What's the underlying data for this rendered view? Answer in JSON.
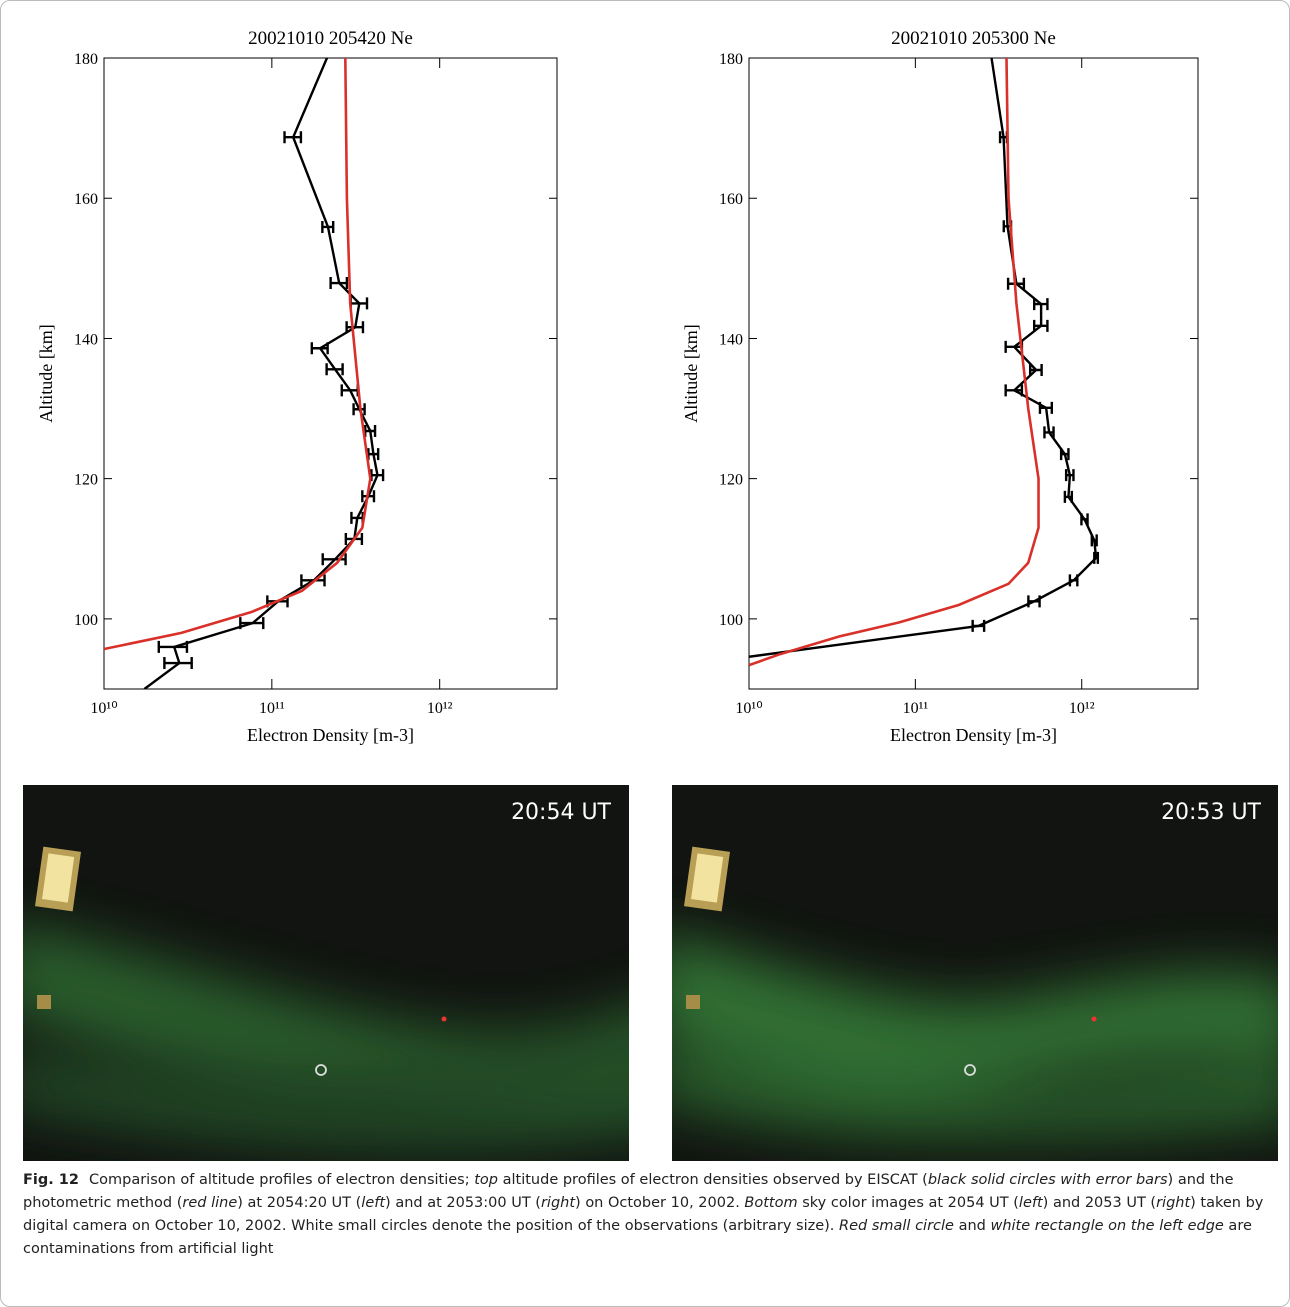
{
  "chart_data": [
    {
      "type": "line",
      "title": "20021010 205420 Ne",
      "xlabel": "Electron Density [m-3]",
      "ylabel": "Altitude [km]",
      "xscale": "log",
      "xlim": [
        10000000000.0,
        5000000000000.0
      ],
      "ylim": [
        90,
        180
      ],
      "xticks": [
        {
          "value": 10000000000.0,
          "label": "10¹⁰"
        },
        {
          "value": 100000000000.0,
          "label": "10¹¹"
        },
        {
          "value": 1000000000000.0,
          "label": "10¹²"
        }
      ],
      "yticks": [
        100,
        120,
        140,
        160,
        180
      ],
      "series": [
        {
          "color": "#000000",
          "x": [
            213000000000.0,
            134000000000.0,
            216000000000.0,
            252000000000.0,
            332000000000.0,
            314000000000.0,
            194000000000.0,
            238000000000.0,
            293000000000.0,
            332000000000.0,
            386000000000.0,
            403000000000.0,
            426000000000.0,
            376000000000.0,
            323000000000.0,
            310000000000.0,
            238000000000.0,
            178000000000.0,
            109000000000.0,
            76900000000.0,
            26200000000.0,
            28100000000.0,
            17400000000.0
          ],
          "y": [
            180,
            168.7,
            155.9,
            147.9,
            145.0,
            141.6,
            138.6,
            135.6,
            132.6,
            129.9,
            126.8,
            123.5,
            120.5,
            117.5,
            114.4,
            111.4,
            108.5,
            105.5,
            102.5,
            99.4,
            96.0,
            93.7,
            90
          ],
          "xerr": [
            null,
            15000000000.0,
            16000000000.0,
            28000000000.0,
            37000000000.0,
            35000000000.0,
            21000000000.0,
            26000000000.0,
            32000000000.0,
            25000000000.0,
            26000000000.0,
            27000000000.0,
            34000000000.0,
            30000000000.0,
            25000000000.0,
            34000000000.0,
            37000000000.0,
            28000000000.0,
            15000000000.0,
            12000000000.0,
            5000000000.0,
            5200000000.0,
            null
          ]
        },
        {
          "color": "#d9302a",
          "x": [
            274000000000.0,
            280000000000.0,
            293000000000.0,
            337000000000.0,
            386000000000.0,
            346000000000.0,
            245000000000.0,
            151000000000.0,
            76000000000.0,
            28900000000.0,
            10000000000.0
          ],
          "y": [
            180,
            160,
            145,
            130,
            120,
            113,
            108,
            104,
            101,
            98,
            95.7
          ]
        }
      ]
    },
    {
      "type": "line",
      "title": "20021010 205300 Ne",
      "xlabel": "Electron Density [m-3]",
      "ylabel": "Altitude [km]",
      "xscale": "log",
      "xlim": [
        10000000000.0,
        5000000000000.0
      ],
      "ylim": [
        90,
        180
      ],
      "xticks": [
        {
          "value": 10000000000.0,
          "label": "10¹⁰"
        },
        {
          "value": 100000000000.0,
          "label": "10¹¹"
        },
        {
          "value": 1000000000000.0,
          "label": "10¹²"
        }
      ],
      "yticks": [
        100,
        120,
        140,
        160,
        180
      ],
      "series": [
        {
          "color": "#000000",
          "x": [
            287000000000.0,
            339000000000.0,
            358000000000.0,
            405000000000.0,
            570000000000.0,
            570000000000.0,
            393000000000.0,
            532000000000.0,
            393000000000.0,
            611000000000.0,
            637000000000.0,
            792000000000.0,
            849000000000.0,
            832000000000.0,
            1040000000000.0,
            1190000000000.0,
            1220000000000.0,
            895000000000.0,
            518000000000.0,
            240000000000.0,
            10000000000.0
          ],
          "y": [
            180,
            168.7,
            156.0,
            147.8,
            144.9,
            141.8,
            138.8,
            135.5,
            132.6,
            130.1,
            126.6,
            123.5,
            120.5,
            117.4,
            114.2,
            111.2,
            108.7,
            105.5,
            102.5,
            99.0,
            94.6
          ],
          "xerr": [
            null,
            16000000000.0,
            18000000000.0,
            44000000000.0,
            52000000000.0,
            52000000000.0,
            44000000000.0,
            42000000000.0,
            44000000000.0,
            50000000000.0,
            40000000000.0,
            40000000000.0,
            43000000000.0,
            40000000000.0,
            44000000000.0,
            40000000000.0,
            30000000000.0,
            46000000000.0,
            40000000000.0,
            19000000000.0,
            null
          ]
        },
        {
          "color": "#d9302a",
          "x": [
            353000000000.0,
            363000000000.0,
            405000000000.0,
            477000000000.0,
            550000000000.0,
            550000000000.0,
            477000000000.0,
            363000000000.0,
            183000000000.0,
            80000000000.0,
            35000000000.0,
            15500000000.0,
            10000000000.0
          ],
          "y": [
            180,
            160,
            145,
            130,
            120,
            113,
            108,
            105,
            102,
            99.5,
            97.5,
            95,
            93.4
          ]
        }
      ]
    }
  ],
  "images": [
    {
      "label": "20:54 UT"
    },
    {
      "label": "20:53 UT"
    }
  ],
  "caption": {
    "label": "Fig. 12",
    "segments": [
      "Comparison of altitude profiles of electron densities; ",
      "top",
      " altitude profiles of electron densities observed by EISCAT (",
      "black solid circles with error bars",
      ") and the photometric method (",
      "red line",
      ") at 2054:20 UT (",
      "left",
      ") and at 2053:00 UT (",
      "right",
      ") on October 10, 2002. ",
      "Bottom",
      " sky color images at 2054 UT (",
      "left",
      ") and 2053 UT (",
      "right",
      ") taken by digital camera on October 10, 2002. White small circles denote the position of the observations (arbitrary size). ",
      "Red small circle",
      " and ",
      "white rectangle on the left edge",
      " are contaminations from artificial light"
    ]
  }
}
